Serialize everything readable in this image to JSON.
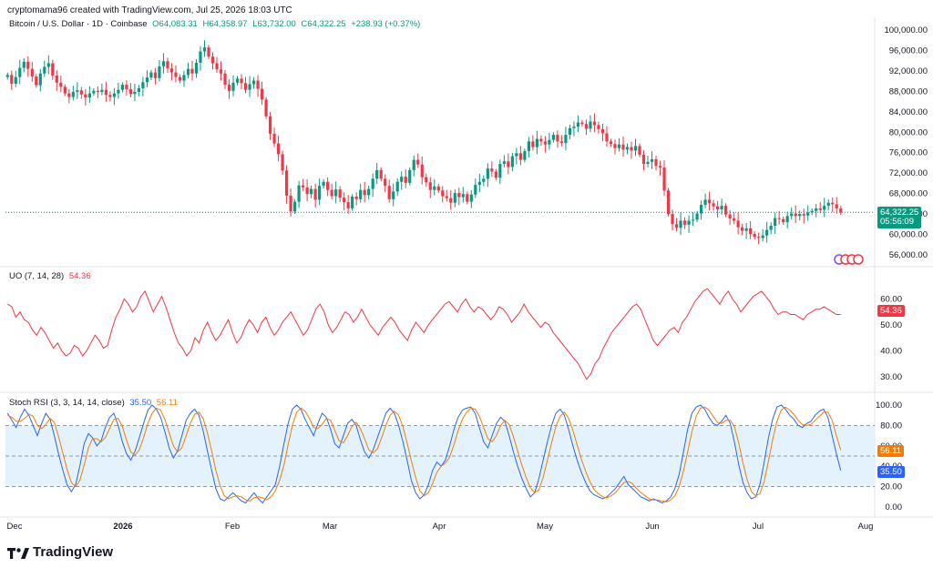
{
  "header": {
    "attribution": "cryptomama96 created with TradingView.com, Jul 25, 2026 18:03 UTC"
  },
  "legend": {
    "symbol": "Bitcoin / U.S. Dollar · 1D · Coinbase",
    "open": "O64,083.31",
    "high": "H64,358.97",
    "low": "L63,732.00",
    "close": "C64,322.25",
    "change": "+238.93 (+0.37%)",
    "uo_label": "UO (7, 14, 28)",
    "uo_value": "54.36",
    "stoch_label": "Stoch RSI (3, 3, 14, 14, close)",
    "stoch_k": "35.50",
    "stoch_d": "56.11"
  },
  "price_tag": {
    "price": "64,322.25",
    "countdown": "05:56:09"
  },
  "brand": {
    "name": "TradingView"
  },
  "colors": {
    "up": "#089981",
    "down": "#f23645",
    "uo_line": "#f23645",
    "stoch_k": "#2962ff",
    "stoch_d": "#f57c00",
    "stoch_band": "#e3f2fd"
  },
  "chart_data": [
    {
      "type": "candlestick",
      "pane": "price",
      "y_ticks": [
        "100,000.00",
        "96,000.00",
        "92,000.00",
        "88,000.00",
        "84,000.00",
        "80,000.00",
        "76,000.00",
        "72,000.00",
        "68,000.00",
        "64,000.00",
        "60,000.00",
        "56,000.00"
      ],
      "ylim": [
        56000,
        100000
      ],
      "x_ticks": [
        "Dec",
        "2026",
        "Feb",
        "Mar",
        "Apr",
        "May",
        "Jun",
        "Jul",
        "Aug"
      ],
      "last_close": 64322.25,
      "closes": [
        91200,
        89500,
        90800,
        92600,
        93800,
        92400,
        90900,
        89200,
        91500,
        92800,
        93500,
        91100,
        89700,
        88900,
        87600,
        86900,
        87900,
        88200,
        87400,
        86800,
        87600,
        88100,
        87900,
        88300,
        87300,
        86900,
        87600,
        88300,
        89300,
        88400,
        87500,
        87900,
        88600,
        89800,
        90700,
        91700,
        90600,
        92900,
        93900,
        92500,
        91700,
        90800,
        90100,
        91200,
        92400,
        91500,
        93600,
        95800,
        96600,
        94800,
        93500,
        92300,
        91500,
        89300,
        88100,
        89700,
        90500,
        89600,
        88300,
        89400,
        90100,
        88500,
        86400,
        83100,
        79700,
        77800,
        75700,
        72500,
        67600,
        64500,
        66400,
        69600,
        69200,
        67900,
        68900,
        66800,
        69500,
        70300,
        68700,
        67500,
        68800,
        67200,
        66300,
        65100,
        67400,
        66900,
        68700,
        67700,
        68900,
        70900,
        72600,
        70900,
        69500,
        66900,
        68400,
        70300,
        71300,
        70100,
        72600,
        74600,
        73700,
        71200,
        70200,
        68700,
        69400,
        68600,
        67500,
        67100,
        66200,
        68100,
        67300,
        67900,
        66400,
        67800,
        69700,
        70300,
        70900,
        72900,
        72300,
        71100,
        73800,
        74300,
        73200,
        75300,
        75900,
        74600,
        76300,
        78200,
        77100,
        78700,
        78200,
        77600,
        78500,
        79500,
        78200,
        77900,
        79500,
        80800,
        81100,
        81900,
        81600,
        80700,
        82100,
        81400,
        80600,
        79800,
        78200,
        77700,
        76900,
        77600,
        76600,
        77100,
        76400,
        77300,
        75600,
        73800,
        74200,
        74700,
        73400,
        73100,
        68600,
        64000,
        62000,
        61300,
        62700,
        61900,
        62700,
        62900,
        64100,
        65800,
        66800,
        66100,
        65500,
        64900,
        65600,
        63900,
        63100,
        62700,
        61400,
        60700,
        61200,
        60100,
        59500,
        59300,
        59800,
        60900,
        61700,
        63200,
        63000,
        62400,
        63600,
        64100,
        63600,
        64000,
        63700,
        64300,
        64600,
        65100,
        64800,
        65600,
        66200,
        65900,
        65100,
        64300
      ]
    },
    {
      "type": "line",
      "pane": "oscillator",
      "name": "UO (7, 14, 28)",
      "y_ticks": [
        "60.00",
        "50.00",
        "40.00",
        "30.00"
      ],
      "ylim": [
        25,
        70
      ],
      "last": 54.36,
      "values": [
        58,
        57,
        53,
        55,
        52,
        51,
        48,
        46,
        49,
        47,
        44,
        41,
        43,
        40,
        38,
        39,
        42,
        41,
        38,
        40,
        43,
        46,
        44,
        41,
        42,
        48,
        53,
        56,
        60,
        58,
        55,
        57,
        61,
        63,
        59,
        55,
        58,
        61,
        57,
        52,
        47,
        43,
        41,
        38,
        40,
        45,
        43,
        48,
        51,
        47,
        44,
        46,
        49,
        52,
        47,
        43,
        45,
        49,
        52,
        50,
        47,
        51,
        53,
        49,
        46,
        48,
        51,
        53,
        55,
        52,
        49,
        46,
        48,
        52,
        56,
        58,
        55,
        50,
        47,
        49,
        52,
        55,
        54,
        51,
        53,
        56,
        53,
        50,
        48,
        46,
        49,
        51,
        53,
        51,
        48,
        46,
        44,
        48,
        51,
        49,
        47,
        50,
        52,
        54,
        56,
        58,
        59,
        57,
        55,
        58,
        60,
        57,
        55,
        57,
        56,
        54,
        52,
        54,
        57,
        56,
        54,
        51,
        53,
        55,
        58,
        55,
        53,
        51,
        49,
        51,
        50,
        47,
        45,
        43,
        41,
        39,
        37,
        35,
        32,
        29,
        31,
        35,
        37,
        41,
        44,
        47,
        49,
        51,
        53,
        55,
        57,
        58,
        56,
        52,
        48,
        44,
        42,
        44,
        46,
        48,
        49,
        47,
        51,
        53,
        56,
        59,
        61,
        63,
        64,
        62,
        60,
        58,
        61,
        63,
        60,
        58,
        55,
        57,
        59,
        61,
        62,
        63,
        61,
        59,
        56,
        54,
        55,
        55,
        54,
        54,
        53,
        52,
        54,
        55,
        56,
        56,
        57,
        56,
        55,
        54,
        54
      ]
    },
    {
      "type": "line",
      "pane": "stoch",
      "name": "Stoch RSI (3, 3, 14, 14, close)",
      "y_ticks": [
        "100.00",
        "80.00",
        "60.00",
        "40.00",
        "20.00",
        "0.00"
      ],
      "ylim": [
        0,
        100
      ],
      "band": [
        20,
        80
      ],
      "series": [
        {
          "name": "K",
          "last": 35.5,
          "values": [
            92,
            85,
            78,
            88,
            96,
            90,
            80,
            70,
            82,
            92,
            86,
            70,
            52,
            36,
            22,
            15,
            22,
            40,
            62,
            72,
            68,
            60,
            65,
            78,
            88,
            92,
            80,
            64,
            52,
            46,
            55,
            68,
            82,
            95,
            100,
            96,
            88,
            74,
            58,
            48,
            55,
            70,
            85,
            92,
            96,
            90,
            75,
            55,
            36,
            18,
            8,
            6,
            10,
            14,
            10,
            6,
            4,
            9,
            14,
            8,
            4,
            10,
            16,
            22,
            40,
            62,
            82,
            96,
            100,
            96,
            86,
            78,
            70,
            82,
            92,
            88,
            76,
            62,
            58,
            70,
            82,
            86,
            80,
            66,
            54,
            48,
            56,
            68,
            80,
            92,
            97,
            92,
            80,
            64,
            46,
            26,
            14,
            8,
            12,
            22,
            36,
            44,
            40,
            46,
            60,
            76,
            88,
            95,
            97,
            98,
            92,
            78,
            64,
            58,
            70,
            82,
            88,
            84,
            70,
            54,
            40,
            28,
            18,
            10,
            14,
            28,
            46,
            64,
            80,
            92,
            96,
            90,
            76,
            60,
            46,
            34,
            24,
            16,
            12,
            10,
            8,
            10,
            14,
            18,
            24,
            30,
            22,
            18,
            14,
            10,
            8,
            6,
            8,
            6,
            4,
            6,
            10,
            18,
            32,
            54,
            76,
            92,
            98,
            100,
            96,
            88,
            82,
            80,
            84,
            90,
            82,
            64,
            42,
            24,
            14,
            8,
            10,
            22,
            44,
            68,
            86,
            98,
            100,
            96,
            90,
            86,
            80,
            78,
            82,
            84,
            90,
            94,
            96,
            88,
            70,
            52,
            36
          ]
        },
        {
          "name": "D",
          "last": 56.11,
          "values": [
            90,
            88,
            84,
            84,
            87,
            91,
            89,
            80,
            77,
            81,
            87,
            83,
            69,
            53,
            37,
            24,
            20,
            26,
            41,
            58,
            67,
            67,
            64,
            68,
            77,
            86,
            87,
            79,
            65,
            54,
            51,
            56,
            68,
            82,
            92,
            97,
            95,
            86,
            73,
            60,
            54,
            58,
            70,
            82,
            91,
            93,
            87,
            73,
            55,
            36,
            21,
            11,
            8,
            10,
            11,
            10,
            7,
            6,
            9,
            10,
            9,
            7,
            10,
            16,
            26,
            41,
            61,
            80,
            93,
            97,
            94,
            87,
            78,
            77,
            81,
            87,
            85,
            75,
            65,
            63,
            70,
            79,
            83,
            77,
            67,
            56,
            53,
            57,
            68,
            80,
            90,
            94,
            90,
            79,
            63,
            45,
            29,
            16,
            11,
            14,
            23,
            34,
            40,
            43,
            49,
            61,
            75,
            86,
            93,
            97,
            96,
            89,
            78,
            67,
            64,
            70,
            80,
            85,
            81,
            69,
            55,
            41,
            29,
            19,
            14,
            17,
            29,
            46,
            63,
            79,
            89,
            93,
            87,
            75,
            61,
            47,
            35,
            25,
            17,
            13,
            10,
            9,
            11,
            14,
            19,
            24,
            25,
            23,
            18,
            14,
            11,
            8,
            7,
            7,
            6,
            5,
            7,
            11,
            20,
            35,
            54,
            74,
            89,
            97,
            98,
            95,
            89,
            83,
            82,
            85,
            85,
            79,
            63,
            43,
            27,
            15,
            11,
            13,
            25,
            45,
            66,
            84,
            95,
            98,
            95,
            91,
            85,
            81,
            80,
            81,
            85,
            89,
            93,
            93,
            85,
            70,
            56
          ]
        }
      ]
    }
  ]
}
